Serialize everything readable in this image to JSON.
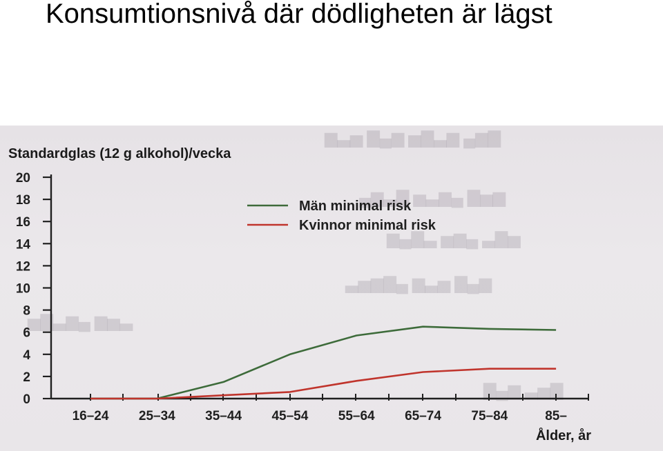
{
  "slide": {
    "title": "Konsumtionsnivå där dödligheten är lägst"
  },
  "chart_data": {
    "type": "line",
    "title": "Konsumtionsnivå där dödligheten är lägst",
    "ylabel": "Standardglas (12 g alkohol)/vecka",
    "xlabel": "Ålder, år",
    "categories": [
      "16–24",
      "25–34",
      "35–44",
      "45–54",
      "55–64",
      "65–74",
      "75–84",
      "85–"
    ],
    "yticks": [
      0,
      2,
      4,
      6,
      8,
      10,
      12,
      14,
      16,
      18,
      20
    ],
    "ylim": [
      0,
      20
    ],
    "grid": false,
    "legend_position": "top-right",
    "series": [
      {
        "name": "Män minimal risk",
        "color": "#3d6b3a",
        "x": [
          1,
          1.5,
          2,
          3,
          4,
          5,
          6,
          7,
          8
        ],
        "values": [
          0,
          0,
          0,
          1.5,
          4,
          5.7,
          6.5,
          6.3,
          6.2
        ]
      },
      {
        "name": "Kvinnor minimal risk",
        "color": "#c0342c",
        "x": [
          1,
          2,
          3,
          4,
          5,
          6,
          7,
          8
        ],
        "values": [
          0,
          0,
          0.3,
          0.6,
          1.6,
          2.4,
          2.7,
          2.7
        ]
      }
    ]
  }
}
